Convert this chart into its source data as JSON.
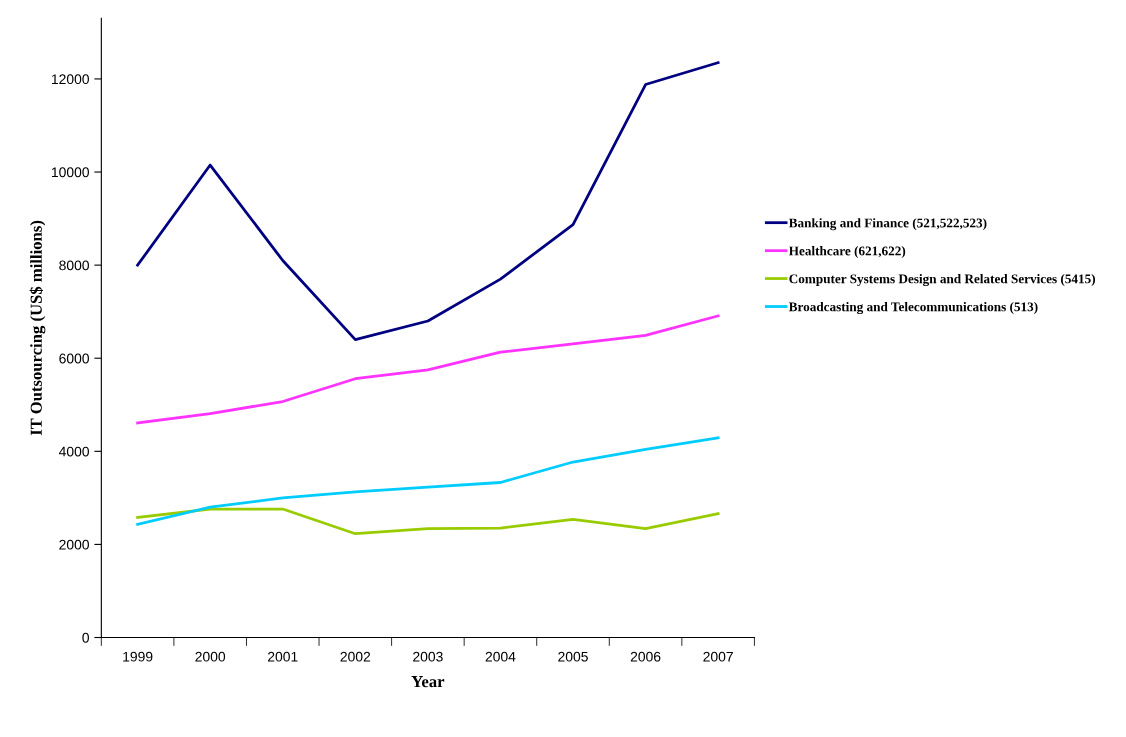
{
  "chart_data": {
    "type": "line",
    "xlabel": "Year",
    "ylabel": "IT Outsourcing (US$ millions)",
    "categories": [
      "1999",
      "2000",
      "2001",
      "2002",
      "2003",
      "2004",
      "2005",
      "2006",
      "2007"
    ],
    "series": [
      {
        "name": "Banking and Finance (521,522,523)",
        "color": "#000080",
        "values": [
          8000,
          10150,
          8100,
          6400,
          6800,
          7700,
          8870,
          11880,
          12350
        ]
      },
      {
        "name": "Healthcare (621,622)",
        "color": "#ff33ff",
        "values": [
          4610,
          4810,
          5070,
          5560,
          5750,
          6130,
          6310,
          6490,
          6910
        ]
      },
      {
        "name": "Computer Systems Design and Related Services (5415)",
        "color": "#99cc00",
        "values": [
          2580,
          2760,
          2760,
          2230,
          2340,
          2350,
          2540,
          2340,
          2660
        ]
      },
      {
        "name": "Broadcasting and Telecommunications (513)",
        "color": "#00ccff",
        "values": [
          2430,
          2800,
          3000,
          3130,
          3230,
          3330,
          3770,
          4040,
          4290
        ]
      }
    ],
    "ylim": [
      0,
      13300
    ],
    "yticks": [
      0,
      2000,
      4000,
      6000,
      8000,
      10000,
      12000
    ],
    "grid": false,
    "legend": "right",
    "marker": "none",
    "line_style": "solid"
  }
}
